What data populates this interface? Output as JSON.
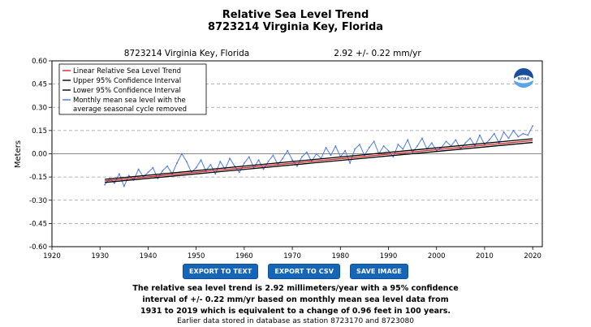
{
  "header": {
    "title": "Relative Sea Level Trend",
    "subtitle": "8723214 Virginia Key, Florida"
  },
  "chart_data": {
    "type": "line",
    "station_label": "8723214 Virginia Key, Florida",
    "trend_label": "2.92 +/-  0.22 mm/yr",
    "ylabel": "Meters",
    "xlabel": "",
    "xlim": [
      1920,
      2022
    ],
    "ylim": [
      -0.6,
      0.6
    ],
    "x_ticks": [
      1920,
      1930,
      1940,
      1950,
      1960,
      1970,
      1980,
      1990,
      2000,
      2010,
      2020
    ],
    "y_ticks": [
      "0.60",
      "0.45",
      "0.30",
      "0.15",
      "0.00",
      "-0.15",
      "-0.30",
      "-0.45",
      "-0.60"
    ],
    "grid": "horizontal dashed",
    "legend_position": "top-left",
    "legend": [
      {
        "name": "Linear Relative Sea Level Trend",
        "color": "#d62728"
      },
      {
        "name": "Upper 95% Confidence Interval",
        "color": "#000000"
      },
      {
        "name": "Lower 95% Confidence Interval",
        "color": "#000000"
      },
      {
        "name": "Monthly mean sea level with the average seasonal cycle removed",
        "color": "#4a78e8"
      }
    ],
    "legend_line4": "Monthly mean sea level with the",
    "legend_line5": "average seasonal cycle removed",
    "series": [
      {
        "name": "Linear Relative Sea Level Trend",
        "x": [
          1931,
          2020
        ],
        "y": [
          -0.175,
          0.085
        ]
      },
      {
        "name": "Upper 95% Confidence Interval",
        "x": [
          1931,
          2020
        ],
        "y": [
          -0.165,
          0.097
        ]
      },
      {
        "name": "Lower 95% Confidence Interval",
        "x": [
          1931,
          2020
        ],
        "y": [
          -0.185,
          0.073
        ]
      },
      {
        "name": "Monthly mean sea level with the average seasonal cycle removed",
        "x": [
          1931.0,
          1932.0,
          1933.0,
          1934.0,
          1935.0,
          1936.0,
          1937.0,
          1938.0,
          1939.0,
          1940.0,
          1941.0,
          1942.0,
          1943.0,
          1944.0,
          1945.0,
          1946.0,
          1947.0,
          1948.0,
          1949.0,
          1950.0,
          1951.0,
          1952.0,
          1953.0,
          1954.0,
          1955.0,
          1956.0,
          1957.0,
          1958.0,
          1959.0,
          1960.0,
          1961.0,
          1962.0,
          1963.0,
          1964.0,
          1965.0,
          1966.0,
          1967.0,
          1968.0,
          1969.0,
          1970.0,
          1971.0,
          1972.0,
          1973.0,
          1974.0,
          1975.0,
          1976.0,
          1977.0,
          1978.0,
          1979.0,
          1980.0,
          1981.0,
          1982.0,
          1983.0,
          1984.0,
          1985.0,
          1986.0,
          1987.0,
          1988.0,
          1989.0,
          1990.0,
          1991.0,
          1992.0,
          1993.0,
          1994.0,
          1995.0,
          1996.0,
          1997.0,
          1998.0,
          1999.0,
          2000.0,
          2001.0,
          2002.0,
          2003.0,
          2004.0,
          2005.0,
          2006.0,
          2007.0,
          2008.0,
          2009.0,
          2010.0,
          2011.0,
          2012.0,
          2013.0,
          2014.0,
          2015.0,
          2016.0,
          2017.0,
          2018.0,
          2019.0,
          2020.0
        ],
        "y": [
          -0.2,
          -0.16,
          -0.19,
          -0.13,
          -0.21,
          -0.14,
          -0.17,
          -0.1,
          -0.15,
          -0.12,
          -0.09,
          -0.16,
          -0.11,
          -0.08,
          -0.13,
          -0.06,
          0.0,
          -0.05,
          -0.12,
          -0.09,
          -0.04,
          -0.11,
          -0.07,
          -0.13,
          -0.05,
          -0.1,
          -0.03,
          -0.08,
          -0.12,
          -0.06,
          -0.02,
          -0.09,
          -0.04,
          -0.1,
          -0.05,
          -0.01,
          -0.07,
          -0.03,
          0.02,
          -0.04,
          -0.08,
          -0.02,
          0.01,
          -0.05,
          0.0,
          -0.03,
          0.04,
          -0.01,
          0.05,
          -0.02,
          0.02,
          -0.06,
          0.03,
          0.06,
          -0.01,
          0.04,
          0.08,
          0.0,
          0.05,
          0.02,
          -0.02,
          0.06,
          0.03,
          0.09,
          0.01,
          0.05,
          0.1,
          0.03,
          0.07,
          0.02,
          0.04,
          0.08,
          0.05,
          0.09,
          0.03,
          0.07,
          0.1,
          0.05,
          0.12,
          0.06,
          0.09,
          0.13,
          0.07,
          0.14,
          0.1,
          0.15,
          0.11,
          0.13,
          0.12,
          0.18
        ]
      }
    ]
  },
  "buttons": {
    "export_text": "EXPORT TO TEXT",
    "export_csv": "EXPORT TO CSV",
    "save_image": "SAVE IMAGE"
  },
  "description": {
    "line1": "The relative sea level trend is 2.92 millimeters/year with a 95% confidence",
    "line2": "interval of +/- 0.22 mm/yr based on monthly mean sea level data from",
    "line3": "1931 to 2019 which is equivalent to a change of 0.96 feet in 100 years.",
    "note": "Earlier data stored in database as station 8723170 and 8723080"
  },
  "colors": {
    "trend": "#d62728",
    "confidence": "#000000",
    "monthly": "#4a78e8",
    "button": "#1565b8"
  },
  "logo": {
    "text": "NOAA"
  }
}
